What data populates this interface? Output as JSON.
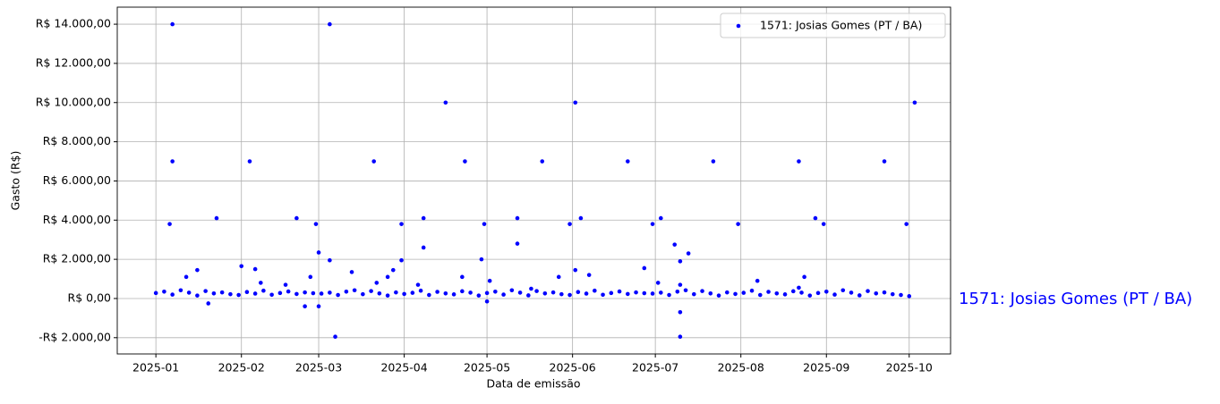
{
  "chart_data": {
    "type": "scatter",
    "xlabel": "Data de emissão",
    "ylabel": "Gasto (R$)",
    "annotation": "1571: Josias Gomes (PT / BA)",
    "grid": true,
    "legend": "upper right",
    "xlim": [
      "2024-12-18",
      "2025-10-16"
    ],
    "xticks": [
      {
        "value": "2025-01-01",
        "label": "2025-01"
      },
      {
        "value": "2025-02-01",
        "label": "2025-02"
      },
      {
        "value": "2025-03-01",
        "label": "2025-03"
      },
      {
        "value": "2025-04-01",
        "label": "2025-04"
      },
      {
        "value": "2025-05-01",
        "label": "2025-05"
      },
      {
        "value": "2025-06-01",
        "label": "2025-06"
      },
      {
        "value": "2025-07-01",
        "label": "2025-07"
      },
      {
        "value": "2025-08-01",
        "label": "2025-08"
      },
      {
        "value": "2025-09-01",
        "label": "2025-09"
      },
      {
        "value": "2025-10-01",
        "label": "2025-10"
      }
    ],
    "ylim": [
      -2830,
      14870
    ],
    "yticks": [
      {
        "value": -2000,
        "label": "-R$ 2.000,00"
      },
      {
        "value": 0,
        "label": "R$ 0,00"
      },
      {
        "value": 2000,
        "label": "R$ 2.000,00"
      },
      {
        "value": 4000,
        "label": "R$ 4.000,00"
      },
      {
        "value": 6000,
        "label": "R$ 6.000,00"
      },
      {
        "value": 8000,
        "label": "R$ 8.000,00"
      },
      {
        "value": 10000,
        "label": "R$ 10.000,00"
      },
      {
        "value": 12000,
        "label": "R$ 12.000,00"
      },
      {
        "value": 14000,
        "label": "R$ 14.000,00"
      }
    ],
    "series": [
      {
        "name": "1571: Josias Gomes (PT / BA)",
        "color": "#0000ff",
        "x": [
          "2025-01-01",
          "2025-01-04",
          "2025-01-07",
          "2025-01-10",
          "2025-01-13",
          "2025-01-16",
          "2025-01-19",
          "2025-01-22",
          "2025-01-25",
          "2025-01-28",
          "2025-01-31",
          "2025-02-03",
          "2025-02-06",
          "2025-02-09",
          "2025-02-12",
          "2025-02-15",
          "2025-02-18",
          "2025-02-21",
          "2025-02-24",
          "2025-02-27",
          "2025-03-02",
          "2025-03-05",
          "2025-03-08",
          "2025-03-11",
          "2025-03-14",
          "2025-03-17",
          "2025-03-20",
          "2025-03-23",
          "2025-03-26",
          "2025-03-29",
          "2025-04-01",
          "2025-04-04",
          "2025-04-07",
          "2025-04-10",
          "2025-04-13",
          "2025-04-16",
          "2025-04-19",
          "2025-04-22",
          "2025-04-25",
          "2025-04-28",
          "2025-05-01",
          "2025-05-04",
          "2025-05-07",
          "2025-05-10",
          "2025-05-13",
          "2025-05-16",
          "2025-05-19",
          "2025-05-22",
          "2025-05-25",
          "2025-05-28",
          "2025-05-31",
          "2025-06-03",
          "2025-06-06",
          "2025-06-09",
          "2025-06-12",
          "2025-06-15",
          "2025-06-18",
          "2025-06-21",
          "2025-06-24",
          "2025-06-27",
          "2025-06-30",
          "2025-07-03",
          "2025-07-06",
          "2025-07-09",
          "2025-07-12",
          "2025-07-15",
          "2025-07-18",
          "2025-07-21",
          "2025-07-24",
          "2025-07-27",
          "2025-07-30",
          "2025-08-02",
          "2025-08-05",
          "2025-08-08",
          "2025-08-11",
          "2025-08-14",
          "2025-08-17",
          "2025-08-20",
          "2025-08-23",
          "2025-08-26",
          "2025-08-29",
          "2025-09-01",
          "2025-09-04",
          "2025-09-07",
          "2025-09-10",
          "2025-09-13",
          "2025-09-16",
          "2025-09-19",
          "2025-09-22",
          "2025-09-25",
          "2025-09-28",
          "2025-10-01",
          "2025-01-07",
          "2025-01-07",
          "2025-01-06",
          "2025-02-04",
          "2025-01-23",
          "2025-03-05",
          "2025-03-21",
          "2025-04-16",
          "2025-04-23",
          "2025-05-21",
          "2025-06-02",
          "2025-06-21",
          "2025-07-22",
          "2025-08-22",
          "2025-09-22",
          "2025-10-03",
          "2025-02-21",
          "2025-02-28",
          "2025-03-01",
          "2025-03-05",
          "2025-03-31",
          "2025-03-31",
          "2025-04-08",
          "2025-04-08",
          "2025-04-29",
          "2025-04-30",
          "2025-05-12",
          "2025-05-12",
          "2025-05-31",
          "2025-06-04",
          "2025-06-30",
          "2025-07-03",
          "2025-07-08",
          "2025-07-10",
          "2025-07-13",
          "2025-07-31",
          "2025-08-28",
          "2025-08-31",
          "2025-09-30",
          "2025-02-01",
          "2025-03-07",
          "2025-07-10",
          "2025-07-10",
          "2025-01-20",
          "2025-02-24",
          "2025-03-01",
          "2025-05-01",
          "2025-01-12",
          "2025-01-16",
          "2025-02-06",
          "2025-02-08",
          "2025-02-17",
          "2025-02-26",
          "2025-03-13",
          "2025-03-22",
          "2025-03-26",
          "2025-03-28",
          "2025-04-06",
          "2025-04-22",
          "2025-05-02",
          "2025-05-17",
          "2025-05-27",
          "2025-06-02",
          "2025-06-07",
          "2025-06-27",
          "2025-07-02",
          "2025-07-10",
          "2025-08-07",
          "2025-08-24",
          "2025-08-22"
        ],
        "values": [
          280,
          350,
          200,
          420,
          300,
          150,
          380,
          260,
          310,
          220,
          180,
          330,
          250,
          400,
          190,
          280,
          360,
          230,
          310,
          270,
          250,
          300,
          180,
          350,
          420,
          220,
          380,
          260,
          150,
          310,
          230,
          290,
          400,
          180,
          340,
          260,
          210,
          370,
          300,
          150,
          280,
          350,
          200,
          420,
          300,
          160,
          380,
          260,
          310,
          220,
          180,
          330,
          250,
          400,
          190,
          280,
          360,
          230,
          310,
          270,
          250,
          300,
          180,
          350,
          420,
          220,
          380,
          260,
          150,
          310,
          230,
          290,
          400,
          180,
          340,
          260,
          210,
          370,
          300,
          150,
          280,
          350,
          200,
          420,
          300,
          160,
          380,
          260,
          310,
          220,
          180,
          120,
          14000,
          7000,
          3800,
          7000,
          4100,
          14000,
          7000,
          10000,
          7000,
          7000,
          10000,
          7000,
          7000,
          7000,
          7000,
          10000,
          4100,
          3800,
          2350,
          1950,
          3800,
          1950,
          4100,
          2600,
          2000,
          3800,
          4100,
          2800,
          3800,
          4100,
          3800,
          4100,
          2750,
          1900,
          2300,
          3800,
          4100,
          3800,
          3800,
          1650,
          -1950,
          -1950,
          -700,
          -250,
          -400,
          -400,
          -150,
          1100,
          1450,
          1500,
          800,
          700,
          1100,
          1350,
          800,
          1100,
          1450,
          700,
          1100,
          900,
          500,
          1100,
          1450,
          1200,
          1550,
          800,
          700,
          900,
          1100,
          550
        ]
      }
    ]
  }
}
